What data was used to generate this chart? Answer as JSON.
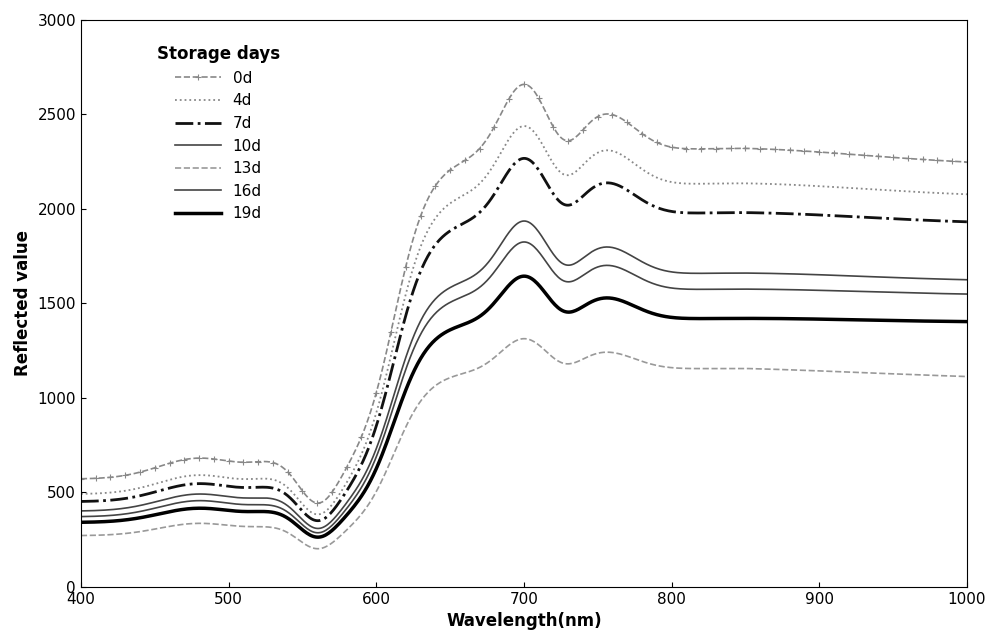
{
  "xlabel": "Wavelength(nm)",
  "ylabel": "Reflected value",
  "xlim": [
    400,
    1000
  ],
  "ylim": [
    0,
    3000
  ],
  "xticks": [
    400,
    500,
    600,
    700,
    800,
    900,
    1000
  ],
  "yticks": [
    0,
    500,
    1000,
    1500,
    2000,
    2500,
    3000
  ],
  "legend_title": "Storage days",
  "legend_labels": [
    "0d",
    "4d",
    "7d",
    "10d",
    "13d",
    "16d",
    "19d"
  ],
  "figsize": [
    10.0,
    6.44
  ],
  "dpi": 100,
  "background_color": "#ffffff",
  "legend_fontsize": 11,
  "legend_title_fontsize": 12,
  "axis_fontsize": 12,
  "tick_fontsize": 11
}
